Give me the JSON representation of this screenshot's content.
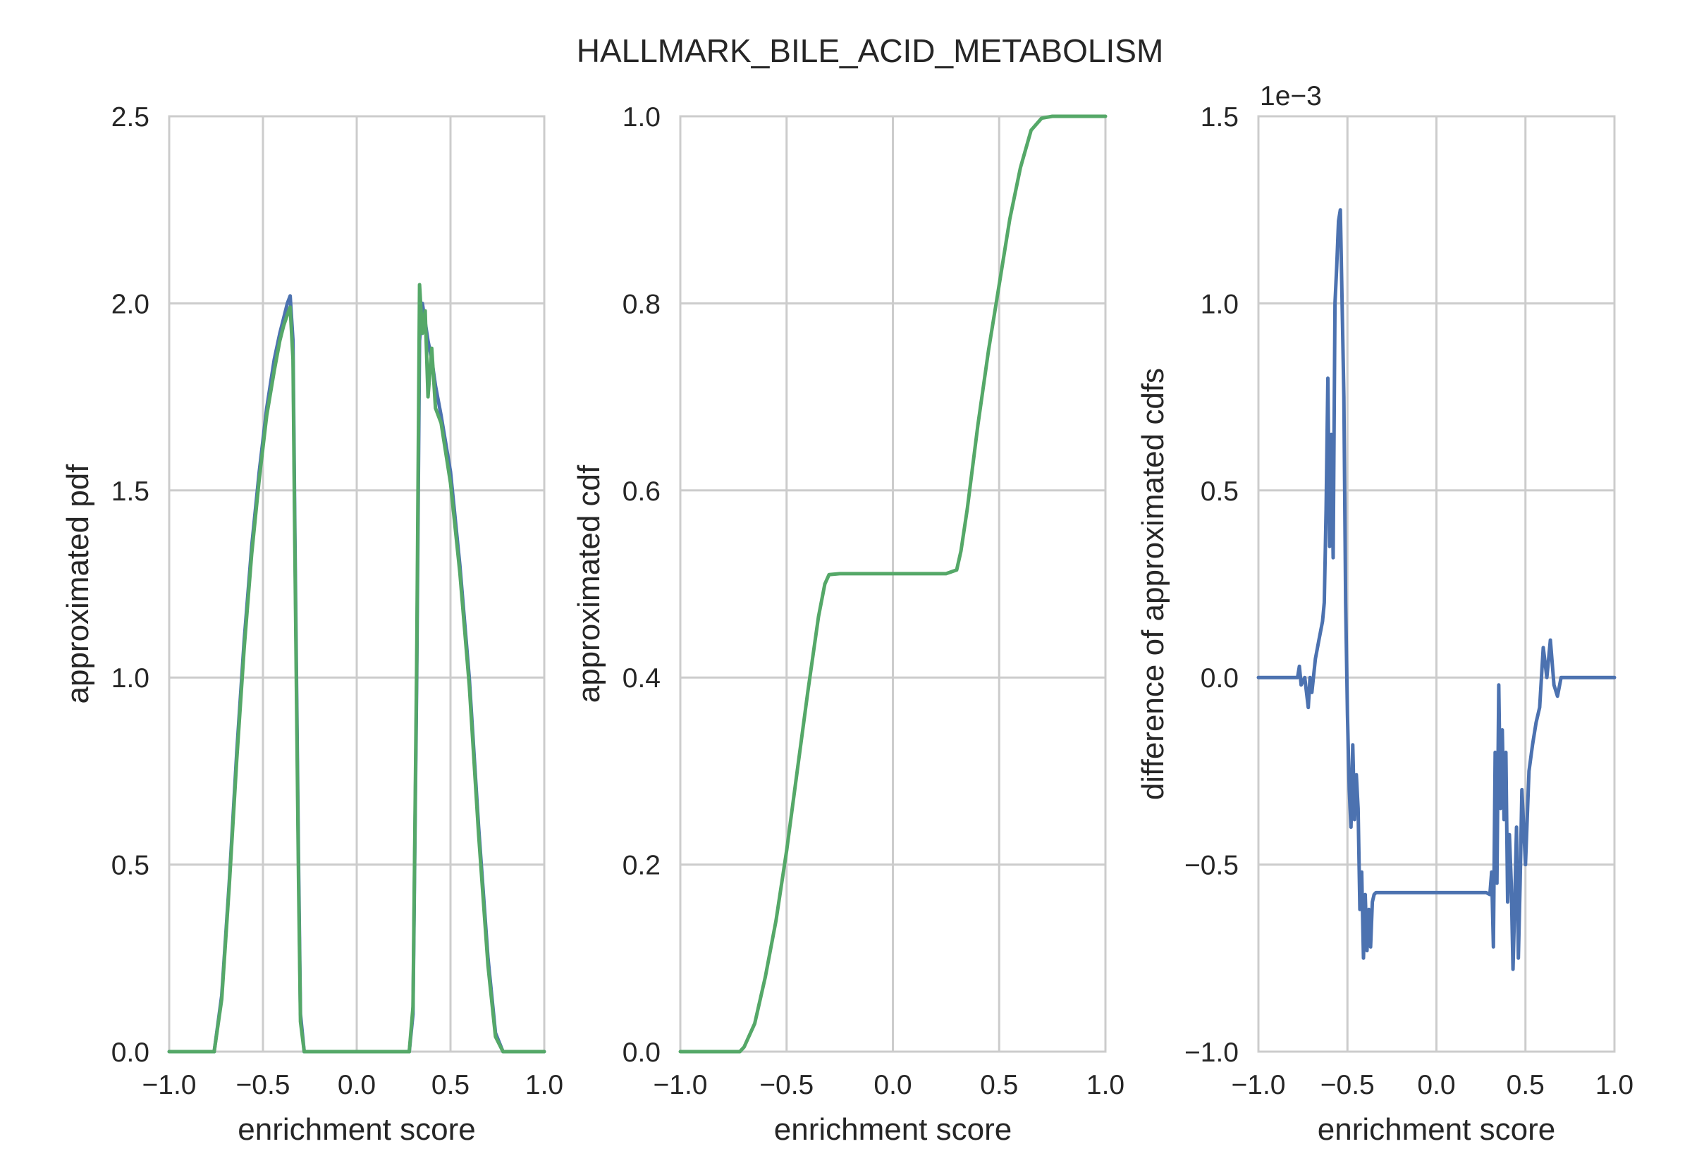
{
  "figure_title": "HALLMARK_BILE_ACID_METABOLISM",
  "colors": {
    "blue": "#4c72b0",
    "green": "#55a868",
    "grid": "#cccccc",
    "text": "#262626"
  },
  "chart_data": [
    {
      "type": "line",
      "xlabel": "enrichment score",
      "ylabel": "approximated pdf",
      "xlim": [
        -1.0,
        1.0
      ],
      "ylim": [
        0.0,
        2.5
      ],
      "xticks": [
        -1.0,
        -0.5,
        0.0,
        0.5,
        1.0
      ],
      "xtick_labels": [
        "−1.0",
        "−0.5",
        "0.0",
        "0.5",
        "1.0"
      ],
      "yticks": [
        0.0,
        0.5,
        1.0,
        1.5,
        2.0,
        2.5
      ],
      "ytick_labels": [
        "0.0",
        "0.5",
        "1.0",
        "1.5",
        "2.0",
        "2.5"
      ],
      "grid": true,
      "series": [
        {
          "color": "#4c72b0",
          "x": [
            -1.0,
            -0.76,
            -0.72,
            -0.68,
            -0.64,
            -0.6,
            -0.56,
            -0.52,
            -0.48,
            -0.44,
            -0.41,
            -0.39,
            -0.37,
            -0.355,
            -0.34,
            -0.33,
            -0.31,
            -0.3,
            -0.28,
            0.28,
            0.3,
            0.32,
            0.335,
            0.35,
            0.365,
            0.38,
            0.4,
            0.42,
            0.45,
            0.5,
            0.55,
            0.6,
            0.65,
            0.7,
            0.74,
            0.78,
            1.0
          ],
          "y": [
            0.0,
            0.0,
            0.15,
            0.45,
            0.8,
            1.1,
            1.35,
            1.55,
            1.72,
            1.85,
            1.92,
            1.96,
            2.0,
            2.02,
            1.9,
            1.4,
            0.5,
            0.1,
            0.0,
            0.0,
            0.1,
            1.0,
            1.9,
            2.0,
            1.95,
            1.9,
            1.85,
            1.78,
            1.7,
            1.55,
            1.3,
            1.0,
            0.6,
            0.25,
            0.05,
            0.0,
            0.0
          ]
        },
        {
          "color": "#55a868",
          "x": [
            -1.0,
            -0.76,
            -0.72,
            -0.68,
            -0.64,
            -0.6,
            -0.56,
            -0.52,
            -0.48,
            -0.44,
            -0.41,
            -0.39,
            -0.37,
            -0.355,
            -0.34,
            -0.33,
            -0.31,
            -0.3,
            -0.28,
            0.28,
            0.3,
            0.32,
            0.335,
            0.35,
            0.365,
            0.38,
            0.4,
            0.42,
            0.45,
            0.5,
            0.55,
            0.6,
            0.65,
            0.7,
            0.74,
            0.78,
            1.0
          ],
          "y": [
            0.0,
            0.0,
            0.14,
            0.44,
            0.78,
            1.08,
            1.33,
            1.53,
            1.7,
            1.82,
            1.9,
            1.94,
            1.97,
            1.99,
            1.85,
            1.35,
            0.45,
            0.08,
            0.0,
            0.0,
            0.12,
            1.05,
            2.05,
            1.92,
            1.98,
            1.75,
            1.88,
            1.72,
            1.68,
            1.52,
            1.28,
            0.98,
            0.58,
            0.23,
            0.04,
            0.0,
            0.0
          ]
        }
      ]
    },
    {
      "type": "line",
      "xlabel": "enrichment score",
      "ylabel": "approximated cdf",
      "xlim": [
        -1.0,
        1.0
      ],
      "ylim": [
        0.0,
        1.0
      ],
      "xticks": [
        -1.0,
        -0.5,
        0.0,
        0.5,
        1.0
      ],
      "xtick_labels": [
        "−1.0",
        "−0.5",
        "0.0",
        "0.5",
        "1.0"
      ],
      "yticks": [
        0.0,
        0.2,
        0.4,
        0.6,
        0.8,
        1.0
      ],
      "ytick_labels": [
        "0.0",
        "0.2",
        "0.4",
        "0.6",
        "0.8",
        "1.0"
      ],
      "grid": true,
      "series": [
        {
          "color": "#55a868",
          "x": [
            -1.0,
            -0.72,
            -0.7,
            -0.65,
            -0.6,
            -0.55,
            -0.5,
            -0.45,
            -0.4,
            -0.35,
            -0.32,
            -0.3,
            -0.25,
            0.25,
            0.3,
            0.32,
            0.35,
            0.4,
            0.45,
            0.5,
            0.55,
            0.6,
            0.65,
            0.7,
            0.75,
            1.0
          ],
          "y": [
            0.0,
            0.0,
            0.005,
            0.03,
            0.08,
            0.14,
            0.215,
            0.3,
            0.385,
            0.465,
            0.5,
            0.51,
            0.511,
            0.511,
            0.515,
            0.535,
            0.58,
            0.67,
            0.75,
            0.82,
            0.89,
            0.945,
            0.985,
            0.998,
            1.0,
            1.0
          ]
        }
      ]
    },
    {
      "type": "line",
      "xlabel": "enrichment score",
      "ylabel": "difference of approximated cdfs",
      "offset_text": "1e−3",
      "xlim": [
        -1.0,
        1.0
      ],
      "ylim": [
        -1.0,
        1.5
      ],
      "xticks": [
        -1.0,
        -0.5,
        0.0,
        0.5,
        1.0
      ],
      "xtick_labels": [
        "−1.0",
        "−0.5",
        "0.0",
        "0.5",
        "1.0"
      ],
      "yticks": [
        -1.0,
        -0.5,
        0.0,
        0.5,
        1.0,
        1.5
      ],
      "ytick_labels": [
        "−1.0",
        "−0.5",
        "0.0",
        "0.5",
        "1.0",
        "1.5"
      ],
      "grid": true,
      "series": [
        {
          "color": "#4c72b0",
          "x": [
            -1.0,
            -0.78,
            -0.77,
            -0.76,
            -0.74,
            -0.72,
            -0.71,
            -0.7,
            -0.68,
            -0.66,
            -0.64,
            -0.63,
            -0.62,
            -0.61,
            -0.6,
            -0.59,
            -0.58,
            -0.57,
            -0.56,
            -0.55,
            -0.54,
            -0.53,
            -0.52,
            -0.51,
            -0.5,
            -0.49,
            -0.48,
            -0.47,
            -0.46,
            -0.45,
            -0.44,
            -0.43,
            -0.42,
            -0.41,
            -0.4,
            -0.39,
            -0.38,
            -0.37,
            -0.36,
            -0.35,
            -0.34,
            -0.33,
            -0.3,
            0.28,
            0.3,
            0.31,
            0.32,
            0.33,
            0.34,
            0.35,
            0.36,
            0.37,
            0.38,
            0.39,
            0.4,
            0.41,
            0.42,
            0.43,
            0.44,
            0.45,
            0.46,
            0.47,
            0.48,
            0.5,
            0.52,
            0.54,
            0.56,
            0.58,
            0.6,
            0.62,
            0.64,
            0.66,
            0.68,
            0.7,
            0.75,
            1.0
          ],
          "y": [
            0.0,
            0.0,
            0.03,
            -0.02,
            0.0,
            -0.08,
            0.0,
            -0.04,
            0.05,
            0.1,
            0.15,
            0.2,
            0.45,
            0.8,
            0.35,
            0.65,
            0.32,
            1.0,
            1.1,
            1.22,
            1.25,
            1.0,
            0.75,
            0.2,
            -0.1,
            -0.3,
            -0.4,
            -0.18,
            -0.38,
            -0.26,
            -0.35,
            -0.62,
            -0.52,
            -0.75,
            -0.58,
            -0.73,
            -0.62,
            -0.72,
            -0.6,
            -0.58,
            -0.575,
            -0.575,
            -0.575,
            -0.575,
            -0.58,
            -0.52,
            -0.72,
            -0.2,
            -0.55,
            -0.02,
            -0.35,
            -0.14,
            -0.38,
            -0.2,
            -0.6,
            -0.42,
            -0.55,
            -0.78,
            -0.6,
            -0.4,
            -0.75,
            -0.55,
            -0.3,
            -0.5,
            -0.25,
            -0.18,
            -0.12,
            -0.08,
            0.08,
            0.0,
            0.1,
            -0.02,
            -0.05,
            0.0,
            0.0,
            0.0
          ]
        }
      ]
    }
  ]
}
